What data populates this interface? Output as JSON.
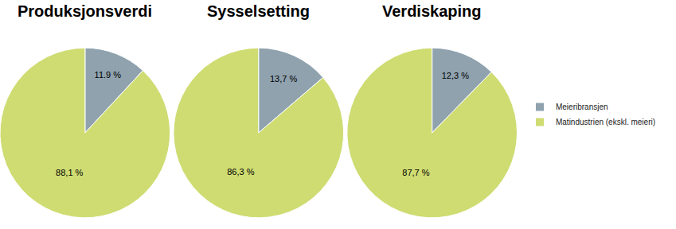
{
  "chart_data": [
    {
      "type": "pie",
      "title": "Produksjonsverdi",
      "categories": [
        "Meieribransjen",
        "Matindustrien (ekskl. meieri)"
      ],
      "values": [
        11.9,
        88.1
      ],
      "value_labels": [
        "11.9 %",
        "88,1 %"
      ],
      "colors": [
        "#8fa2ae",
        "#cfdc72"
      ],
      "data_labels": true,
      "legend": "right"
    },
    {
      "type": "pie",
      "title": "Sysselsetting",
      "categories": [
        "Meieribransjen",
        "Matindustrien (ekskl. meieri)"
      ],
      "values": [
        13.7,
        86.3
      ],
      "value_labels": [
        "13,7 %",
        "86,3 %"
      ],
      "colors": [
        "#8fa2ae",
        "#cfdc72"
      ],
      "data_labels": true,
      "legend": "right"
    },
    {
      "type": "pie",
      "title": "Verdiskaping",
      "categories": [
        "Meieribransjen",
        "Matindustrien (ekskl. meieri)"
      ],
      "values": [
        12.3,
        87.7
      ],
      "value_labels": [
        "12,3 %",
        "87,7 %"
      ],
      "colors": [
        "#8fa2ae",
        "#cfdc72"
      ],
      "data_labels": true,
      "legend": "right"
    }
  ]
}
